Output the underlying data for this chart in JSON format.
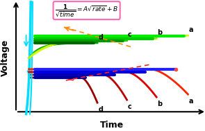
{
  "xlabel": "Time",
  "ylabel": "Voltage",
  "background_color": "#ffffff",
  "formula_box_color": "#ff69b4",
  "cyan_color": "#00ddff",
  "charge_curve_colors": [
    "#ccff00",
    "#88ee00",
    "#22cc00",
    "#009900",
    "#005500"
  ],
  "charge_green_overlay_colors": [
    "#00ee00",
    "#00cc00",
    "#009900",
    "#006600"
  ],
  "discharge_curve_colors": [
    "#ff2200",
    "#dd0000",
    "#bb0000",
    "#990000"
  ],
  "discharge_blue_overlay_colors": [
    "#2222ff",
    "#0000dd",
    "#0000bb",
    "#000099"
  ],
  "arrow_charge_color": "#ff8800",
  "arrow_discharge_color": "#ff2222",
  "charge_labels": [
    "a",
    "b",
    "c",
    "d"
  ],
  "discharge_labels": [
    "a",
    "b",
    "c",
    "d"
  ]
}
